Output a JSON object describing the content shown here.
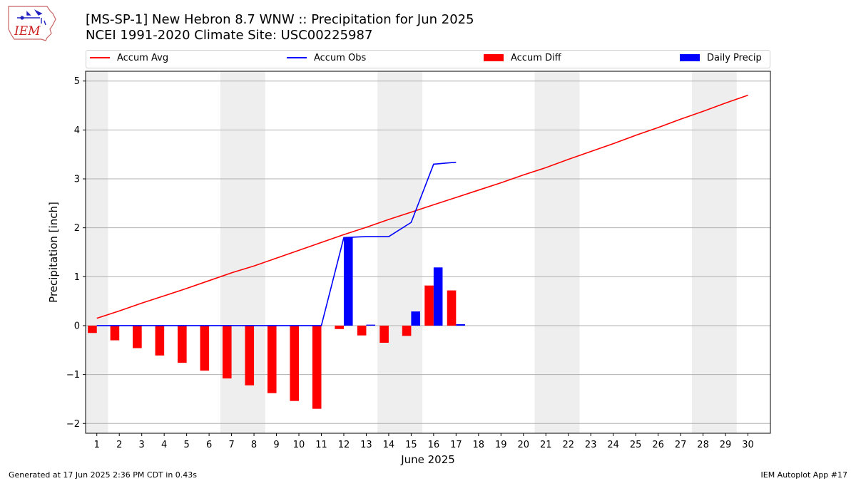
{
  "header": {
    "title_line1": "[MS-SP-1] New Hebron 8.7 WNW :: Precipitation for Jun 2025",
    "title_line2": "NCEI 1991-2020 Climate Site: USC00225987",
    "logo_text": "IEM",
    "logo_icon": "iem-iowa-logo-icon"
  },
  "legend": {
    "items": [
      {
        "label": "Accum Avg",
        "kind": "line",
        "color": "#ff0000"
      },
      {
        "label": "Accum Obs",
        "kind": "line",
        "color": "#0000ff"
      },
      {
        "label": "Accum Diff",
        "kind": "bar",
        "color": "#ff0000"
      },
      {
        "label": "Daily Precip",
        "kind": "bar",
        "color": "#0000ff"
      }
    ]
  },
  "footer": {
    "left": "Generated at 17 Jun 2025 2:36 PM CDT in 0.43s",
    "right": "IEM Autoplot App #17"
  },
  "chart_data": {
    "type": "bar",
    "xlabel": "June 2025",
    "ylabel": "Precipitation [inch]",
    "xlim": [
      0.5,
      31
    ],
    "ylim": [
      -2.2,
      5.2
    ],
    "grid": "horizontal",
    "legend_position": "top",
    "x_ticks": [
      1,
      2,
      3,
      4,
      5,
      6,
      7,
      8,
      9,
      10,
      11,
      12,
      13,
      14,
      15,
      16,
      17,
      18,
      19,
      20,
      21,
      22,
      23,
      24,
      25,
      26,
      27,
      28,
      29,
      30
    ],
    "y_ticks": [
      -2,
      -1,
      0,
      1,
      2,
      3,
      4,
      5
    ],
    "y_tick_labels": [
      "−2",
      "−1",
      "0",
      "1",
      "2",
      "3",
      "4",
      "5"
    ],
    "weekend_shading": [
      [
        0.5,
        1.5
      ],
      [
        6.5,
        8.5
      ],
      [
        13.5,
        15.5
      ],
      [
        20.5,
        22.5
      ],
      [
        27.5,
        29.5
      ]
    ],
    "weekend_color": "#eeeeee",
    "series": [
      {
        "name": "Accum Avg",
        "kind": "line",
        "color": "#ff0000",
        "x": [
          1,
          2,
          3,
          4,
          5,
          6,
          7,
          8,
          9,
          10,
          11,
          12,
          13,
          14,
          15,
          16,
          17,
          18,
          19,
          20,
          21,
          22,
          23,
          24,
          25,
          26,
          27,
          28,
          29,
          30
        ],
        "values": [
          0.15,
          0.3,
          0.46,
          0.61,
          0.76,
          0.92,
          1.08,
          1.22,
          1.38,
          1.54,
          1.7,
          1.86,
          2.01,
          2.17,
          2.32,
          2.47,
          2.62,
          2.77,
          2.92,
          3.08,
          3.23,
          3.4,
          3.56,
          3.72,
          3.89,
          4.05,
          4.22,
          4.38,
          4.55,
          4.71
        ]
      },
      {
        "name": "Accum Obs",
        "kind": "line",
        "color": "#0000ff",
        "x": [
          1,
          2,
          3,
          4,
          5,
          6,
          7,
          8,
          9,
          10,
          11,
          12,
          13,
          14,
          15,
          16,
          17
        ],
        "values": [
          0,
          0,
          0,
          0,
          0,
          0,
          0,
          0,
          0,
          0,
          0,
          1.8,
          1.82,
          1.82,
          2.11,
          3.3,
          3.34
        ]
      },
      {
        "name": "Accum Diff",
        "kind": "bar",
        "color": "#ff0000",
        "x": [
          1,
          2,
          3,
          4,
          5,
          6,
          7,
          8,
          9,
          10,
          11,
          12,
          13,
          14,
          15,
          16,
          17
        ],
        "values": [
          -0.15,
          -0.3,
          -0.46,
          -0.61,
          -0.76,
          -0.92,
          -1.08,
          -1.22,
          -1.38,
          -1.54,
          -1.7,
          -0.07,
          -0.2,
          -0.35,
          -0.21,
          0.82,
          0.72
        ]
      },
      {
        "name": "Daily Precip",
        "kind": "bar",
        "color": "#0000ff",
        "x": [
          12,
          13,
          15,
          16,
          17
        ],
        "values": [
          1.8,
          0.02,
          0.29,
          1.19,
          0.03
        ]
      }
    ]
  }
}
